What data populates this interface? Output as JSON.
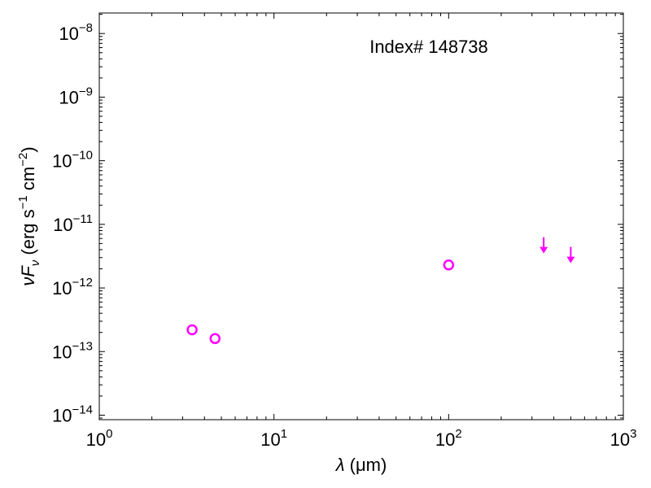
{
  "chart_data": {
    "type": "scatter",
    "annotation": "Index# 148738",
    "xlabel_parts": {
      "symbol": "λ",
      "unit": "(μm)"
    },
    "ylabel_parts": {
      "symbol_main": "ν",
      "symbol_F": "F",
      "symbol_sub": "ν",
      "unit_left": "(erg s",
      "exp1": "−1",
      "unit_mid": " cm",
      "exp2": "−2",
      "unit_right": ")"
    },
    "x_scale": "log",
    "y_scale": "log",
    "xlim": [
      1,
      1000
    ],
    "ylim": [
      8.5e-15,
      2.1e-08
    ],
    "grid": false,
    "x_ticks": [
      {
        "base": "10",
        "exp": "0",
        "value": 1
      },
      {
        "base": "10",
        "exp": "1",
        "value": 10
      },
      {
        "base": "10",
        "exp": "2",
        "value": 100
      },
      {
        "base": "10",
        "exp": "3",
        "value": 1000
      }
    ],
    "y_ticks": [
      {
        "base": "10",
        "exp": "−14",
        "value": 1e-14
      },
      {
        "base": "10",
        "exp": "−13",
        "value": 1e-13
      },
      {
        "base": "10",
        "exp": "−12",
        "value": 1e-12
      },
      {
        "base": "10",
        "exp": "−11",
        "value": 1e-11
      },
      {
        "base": "10",
        "exp": "−10",
        "value": 1e-10
      },
      {
        "base": "10",
        "exp": "−9",
        "value": 1e-09
      },
      {
        "base": "10",
        "exp": "−8",
        "value": 1e-08
      }
    ],
    "detections": [
      {
        "x": 3.4,
        "y": 2.2e-13
      },
      {
        "x": 4.6,
        "y": 1.6e-13
      },
      {
        "x": 100,
        "y": 2.3e-12
      }
    ],
    "upper_limits": [
      {
        "x": 350,
        "y": 3.7e-12
      },
      {
        "x": 500,
        "y": 2.6e-12
      }
    ],
    "marker_color": "#ff00ff"
  }
}
